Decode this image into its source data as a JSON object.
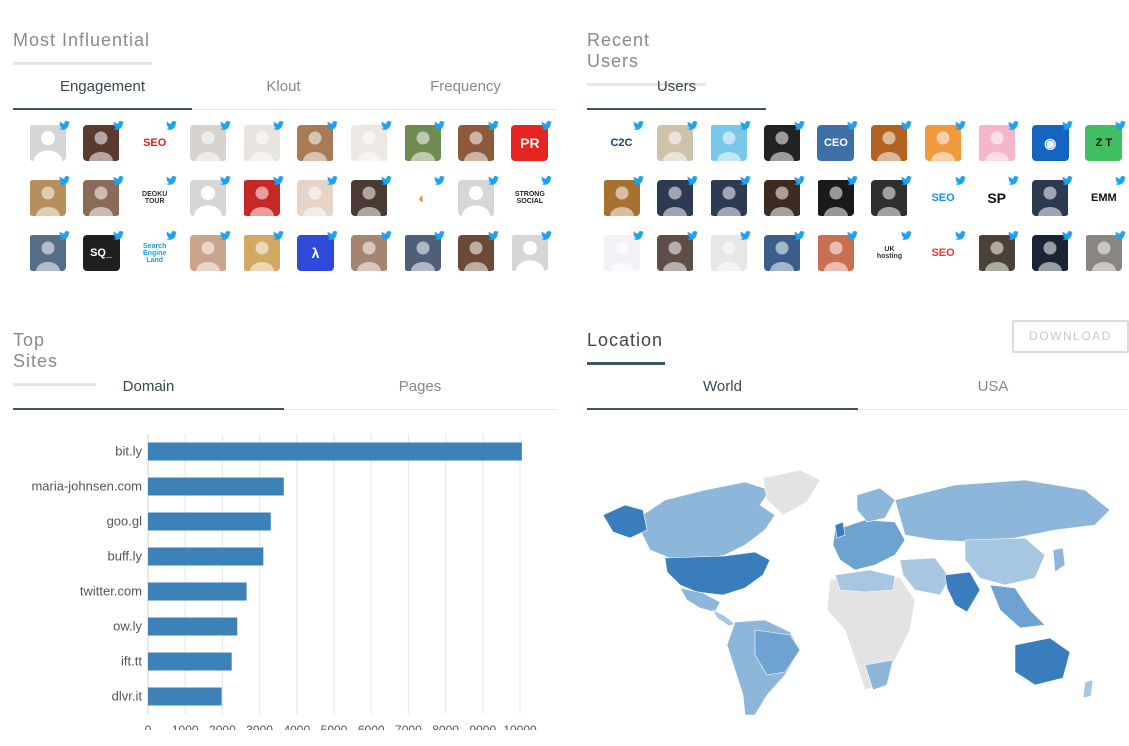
{
  "most_influential": {
    "title": "Most Influential",
    "tabs": [
      "Engagement",
      "Klout",
      "Frequency"
    ],
    "active_tab": 0
  },
  "recent_users": {
    "title": "Recent Users",
    "tabs": [
      "Users"
    ],
    "active_tab": 0
  },
  "top_sites": {
    "title": "Top Sites",
    "tabs": [
      "Domain",
      "Pages"
    ],
    "active_tab": 0
  },
  "location": {
    "title": "Location",
    "download_label": "DOWNLOAD",
    "tabs": [
      "World",
      "USA"
    ],
    "active_tab": 0
  },
  "influential_avatars": [
    {
      "style": "#d9d9d9",
      "icon": "default-avatar"
    },
    {
      "style": "#5a3a2e",
      "icon": "woman-photo"
    },
    {
      "style": "#ffffff",
      "icon": "seo-logo",
      "text": "SEO",
      "color": "#d9201b"
    },
    {
      "style": "#d7d4cf",
      "icon": "man-photo"
    },
    {
      "style": "#e8e4e0",
      "icon": "man-suit-photo"
    },
    {
      "style": "#a87a55",
      "icon": "woman-photo"
    },
    {
      "style": "#efe7e2",
      "icon": "woman-photo"
    },
    {
      "style": "#6e8b51",
      "icon": "woman-photo"
    },
    {
      "style": "#8e5a3c",
      "icon": "woman-photo"
    },
    {
      "style": "#e52620",
      "icon": "pr-logo",
      "text": "PR",
      "color": "#ffffff"
    },
    {
      "style": "#b58f5e",
      "icon": "group-photo"
    },
    {
      "style": "#8a6b58",
      "icon": "man-photo"
    },
    {
      "style": "#ffffff",
      "icon": "deoku-tour-logo",
      "text": "DEOKU TOUR",
      "color": "#333333"
    },
    {
      "style": "#d9d9d9",
      "icon": "default-avatar"
    },
    {
      "style": "#c62828",
      "icon": "badge-logo"
    },
    {
      "style": "#e6d4c7",
      "icon": "glasses-photo"
    },
    {
      "style": "#4a3a32",
      "icon": "couple-photo"
    },
    {
      "style": "#ffffff",
      "icon": "ring-logo",
      "text": "◐",
      "color": "#f08a24"
    },
    {
      "style": "#d9d9d9",
      "icon": "default-avatar"
    },
    {
      "style": "#ffffff",
      "icon": "strong-social-logo",
      "text": "STRONG SOCIAL",
      "color": "#222222"
    },
    {
      "style": "#566d86",
      "icon": "man-photo"
    },
    {
      "style": "#1f1f1f",
      "icon": "sq-logo",
      "text": "SQ_",
      "color": "#ffffff"
    },
    {
      "style": "#ffffff",
      "icon": "search-engine-land-logo",
      "text": "Search Engine Land",
      "color": "#18a0d8"
    },
    {
      "style": "#c9a38a",
      "icon": "woman-photo"
    },
    {
      "style": "#d2a863",
      "icon": "woman-photo"
    },
    {
      "style": "#2f49d8",
      "icon": "lambda-logo",
      "text": "λ",
      "color": "#ffffff"
    },
    {
      "style": "#a68570",
      "icon": "man-photo"
    },
    {
      "style": "#4f5f78",
      "icon": "man-photo"
    },
    {
      "style": "#6b4a38",
      "icon": "man-photo"
    },
    {
      "style": "#d9d9d9",
      "icon": "default-avatar"
    }
  ],
  "recent_avatars": [
    {
      "style": "#ffffff",
      "icon": "c2c-logo",
      "text": "C2C",
      "color": "#1f3d6b"
    },
    {
      "style": "#cfc2aa",
      "icon": "woman-photo"
    },
    {
      "style": "#78c8ea",
      "icon": "twitter-bird-avatar"
    },
    {
      "style": "#222222",
      "icon": "woman-bw-photo"
    },
    {
      "style": "#3f6fa6",
      "icon": "ceo-logo",
      "text": "CEO",
      "color": "#ffffff"
    },
    {
      "style": "#b0621e",
      "icon": "lion-photo"
    },
    {
      "style": "#f09a3c",
      "icon": "woman-photo"
    },
    {
      "style": "#f5b5cc",
      "icon": "woman-photo"
    },
    {
      "style": "#1565c0",
      "icon": "circle-logo",
      "text": "◉",
      "color": "#ffffff"
    },
    {
      "style": "#3fbf5f",
      "icon": "zt-logo",
      "text": "Z T",
      "color": "#111111"
    },
    {
      "style": "#a8702f",
      "icon": "woman-photo"
    },
    {
      "style": "#2c3a52",
      "icon": "banner-logo"
    },
    {
      "style": "#2d3b52",
      "icon": "man-photo"
    },
    {
      "style": "#3d2a20",
      "icon": "man-photo"
    },
    {
      "style": "#1a1a1a",
      "icon": "mask-photo"
    },
    {
      "style": "#2f2f2f",
      "icon": "man-bw-photo"
    },
    {
      "style": "#ffffff",
      "icon": "seo-mouse-logo",
      "text": "SEO",
      "color": "#1a8fd6"
    },
    {
      "style": "#ffffff",
      "icon": "sp-logo",
      "text": "SP",
      "color": "#111111"
    },
    {
      "style": "#2b3a4f",
      "icon": "eye-photo"
    },
    {
      "style": "#ffffff",
      "icon": "emm-logo",
      "text": "EMM",
      "color": "#111111"
    },
    {
      "style": "#f4f1f6",
      "icon": "document-logo"
    },
    {
      "style": "#5e4e46",
      "icon": "woman-photo"
    },
    {
      "style": "#e7e7e7",
      "icon": "woman-bw-photo"
    },
    {
      "style": "#3a5d8a",
      "icon": "woman-photo"
    },
    {
      "style": "#c96f52",
      "icon": "man-photo"
    },
    {
      "style": "#ffffff",
      "icon": "uk-hosting-logo",
      "text": "UK hosting",
      "color": "#333333"
    },
    {
      "style": "#ffffff",
      "icon": "seo-recycle-logo",
      "text": "SEO",
      "color": "#e53935"
    },
    {
      "style": "#4b4038",
      "icon": "man-photo"
    },
    {
      "style": "#1b2436",
      "icon": "man-suit-photo"
    },
    {
      "style": "#8a8580",
      "icon": "laptop-photo"
    }
  ],
  "chart_data": {
    "type": "bar",
    "orientation": "horizontal",
    "categories": [
      "bit.ly",
      "maria-johnsen.com",
      "goo.gl",
      "buff.ly",
      "twitter.com",
      "ow.ly",
      "ift.tt",
      "dlvr.it"
    ],
    "values": [
      10050,
      3650,
      3300,
      3100,
      2650,
      2400,
      2250,
      1980
    ],
    "x_ticks": [
      "0",
      "1000",
      "2000",
      "3000",
      "4000",
      "5000",
      "6000",
      "7000",
      "8000",
      "9000",
      "10000"
    ],
    "xlim": [
      0,
      10000
    ],
    "grid": true,
    "bar_color": "#3c82b9",
    "title": "",
    "xlabel": "",
    "ylabel": ""
  },
  "colors": {
    "accent": "#3d5468",
    "bar": "#3c82b9",
    "map_high": "#3a7dbd",
    "map_mid": "#6ea3d1",
    "map_low": "#a6c6e2",
    "map_none": "#e3e3e3",
    "twitter": "#1da1f2"
  }
}
